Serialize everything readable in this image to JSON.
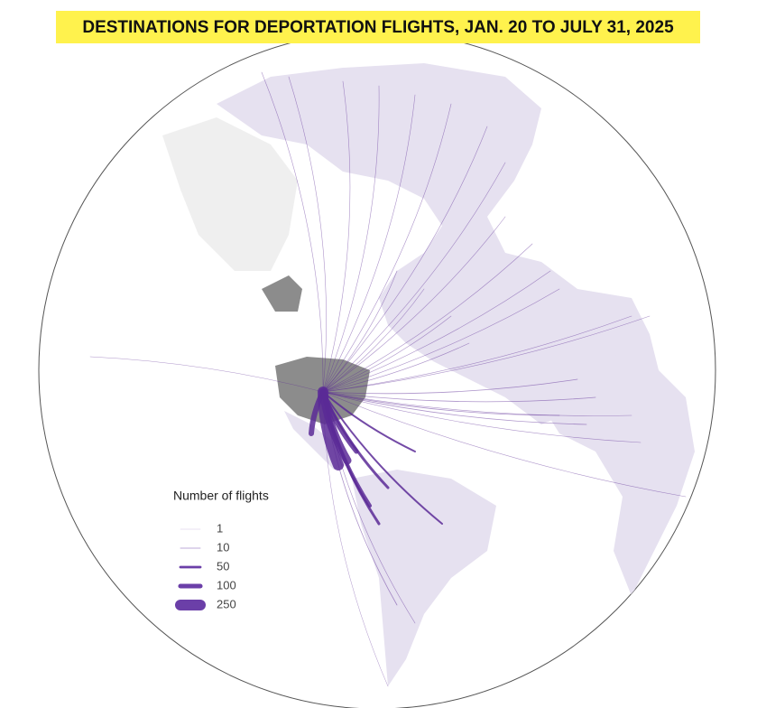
{
  "title": "DESTINATIONS FOR DEPORTATION FLIGHTS, JAN. 20 TO JULY 31, 2025",
  "legend": {
    "title": "Number of flights",
    "items": [
      1,
      10,
      50,
      100,
      250
    ]
  }
}
